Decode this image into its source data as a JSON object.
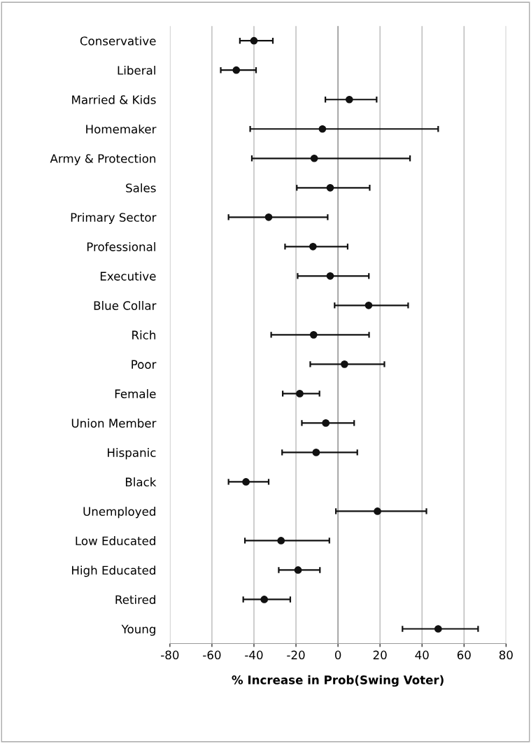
{
  "chart_data": {
    "type": "scatter",
    "xlabel": "% Increase in Prob(Swing Voter)",
    "orientation": "horizontal",
    "categories": [
      "Conservative",
      "Liberal",
      "Married & Kids",
      "Homemaker",
      "Army & Protection",
      "Sales",
      "Primary Sector",
      "Professional",
      "Executive",
      "Blue Collar",
      "Rich",
      "Poor",
      "Female",
      "Union Member",
      "Hispanic",
      "Black",
      "Unemployed",
      "Low Educated",
      "High Educated",
      "Retired",
      "Young"
    ],
    "values": [
      -40,
      -48.4,
      5.4,
      -7.4,
      -11.3,
      -3.7,
      -33,
      -11.9,
      -3.7,
      14.6,
      -11.6,
      3.1,
      -18.2,
      -5.8,
      -10.4,
      -43.8,
      18.8,
      -27.1,
      -19,
      -35.1,
      47.7
    ],
    "errors": [
      [
        -46.7,
        -31
      ],
      [
        -55.8,
        -39
      ],
      [
        -6,
        18.4
      ],
      [
        -41.8,
        47.7
      ],
      [
        -41,
        34.3
      ],
      [
        -19.6,
        15.1
      ],
      [
        -52.1,
        -4.9
      ],
      [
        -25.2,
        4.6
      ],
      [
        -19.2,
        14.7
      ],
      [
        -1.6,
        33.4
      ],
      [
        -31.8,
        14.8
      ],
      [
        -13.2,
        22.1
      ],
      [
        -26.3,
        -8.8
      ],
      [
        -17.2,
        7.7
      ],
      [
        -26.6,
        9.2
      ],
      [
        -52.1,
        -33
      ],
      [
        -1,
        42.1
      ],
      [
        -44.3,
        -4.1
      ],
      [
        -28.2,
        -8.6
      ],
      [
        -45.1,
        -22.7
      ],
      [
        30.7,
        66.7
      ]
    ],
    "color": "#111111",
    "marker": "circle",
    "grid": "x",
    "xlim": [
      -80,
      80
    ],
    "xticks": [
      -80,
      -60,
      -40,
      -20,
      0,
      20,
      40,
      60,
      80
    ]
  }
}
